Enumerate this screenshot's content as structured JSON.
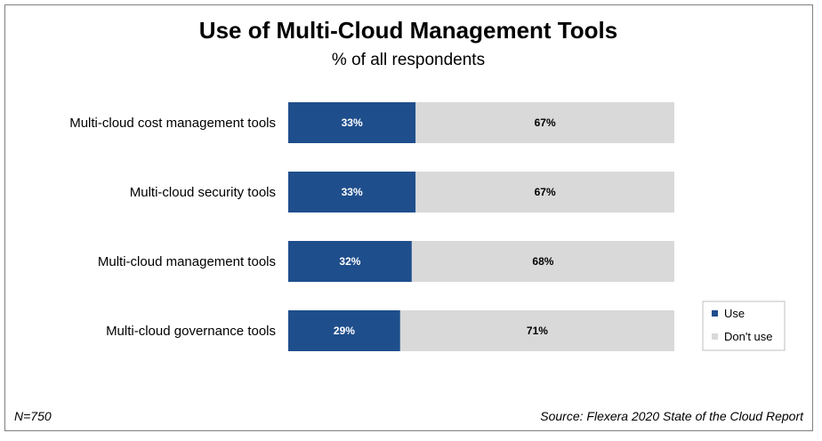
{
  "chart_data": {
    "type": "bar",
    "orientation": "horizontal",
    "stacked": true,
    "title": "Use of Multi-Cloud Management Tools",
    "subtitle": "% of all respondents",
    "categories": [
      "Multi-cloud cost management tools",
      "Multi-cloud security tools",
      "Multi-cloud management tools",
      "Multi-cloud governance tools"
    ],
    "series": [
      {
        "name": "Use",
        "color": "#1f4e8c",
        "label_color": "#ffffff",
        "values": [
          33,
          33,
          32,
          29
        ],
        "labels": [
          "33%",
          "33%",
          "32%",
          "29%"
        ]
      },
      {
        "name": "Don't use",
        "color": "#d9d9d9",
        "label_color": "#000000",
        "values": [
          67,
          67,
          68,
          71
        ],
        "labels": [
          "67%",
          "67%",
          "68%",
          "71%"
        ]
      }
    ],
    "xlim": [
      0,
      100
    ],
    "grid": false,
    "legend_position": "right"
  },
  "footer": {
    "sample_size": "N=750",
    "source": "Source: Flexera 2020 State of the Cloud Report"
  }
}
